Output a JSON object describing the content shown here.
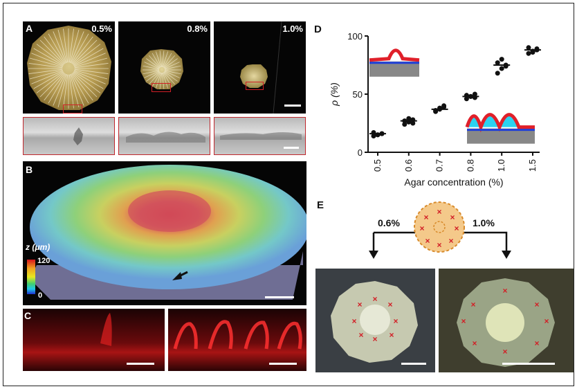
{
  "panel_labels": {
    "A": "A",
    "B": "B",
    "C": "C",
    "D": "D",
    "E": "E"
  },
  "panel_a": {
    "concentrations": [
      "0.5%",
      "0.8%",
      "1.0%"
    ]
  },
  "panel_b": {
    "colorbar_title": "z (μm)",
    "colorbar_max": "120",
    "colorbar_min": "0"
  },
  "panel_e": {
    "left_conc": "0.6%",
    "right_conc": "1.0%"
  },
  "colors": {
    "accent_red": "#d21f26",
    "profile_red": "#e0202a",
    "profile_blue": "#1f3fd9",
    "profile_cyan": "#2bd2f0",
    "schematic_orange": "#f4c98a"
  },
  "chart_data": {
    "type": "scatter",
    "xlabel": "Agar concentration (%)",
    "ylabel": "ρ (%)",
    "categories": [
      "0.5",
      "0.6",
      "0.7",
      "0.8",
      "1.0",
      "1.5"
    ],
    "ylim": [
      0,
      100
    ],
    "yticks": [
      0,
      50,
      100
    ],
    "series": [
      {
        "category": "0.5",
        "points": [
          14,
          15,
          16,
          17,
          15,
          16
        ],
        "median": 16
      },
      {
        "category": "0.6",
        "points": [
          24,
          26,
          28,
          27,
          29,
          25
        ],
        "median": 27
      },
      {
        "category": "0.7",
        "points": [
          35,
          37,
          39,
          36,
          38,
          40
        ],
        "median": 37
      },
      {
        "category": "0.8",
        "points": [
          46,
          48,
          47,
          49,
          48,
          50
        ],
        "median": 48
      },
      {
        "category": "1.0",
        "points": [
          68,
          72,
          75,
          77,
          80,
          74
        ],
        "median": 75
      },
      {
        "category": "1.5",
        "points": [
          85,
          87,
          89,
          90,
          86,
          88
        ],
        "median": 88
      }
    ]
  }
}
